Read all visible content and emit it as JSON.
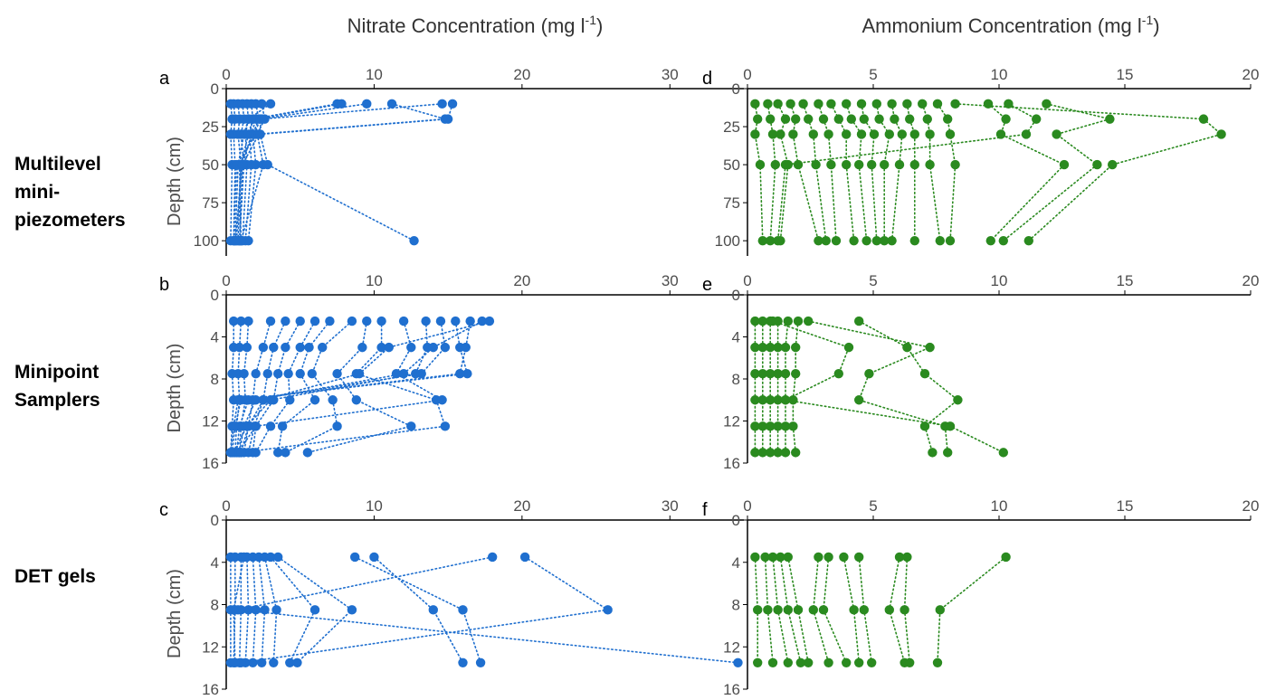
{
  "column_titles": {
    "nitrate": {
      "text": "Nitrate Concentration (mg l",
      "sup": "-1",
      "close": ")"
    },
    "ammonium": {
      "text": "Ammonium Concentration (mg l",
      "sup": "-1",
      "close": ")"
    }
  },
  "row_labels": [
    [
      "Multilevel",
      "mini-",
      "piezometers"
    ],
    [
      "Minipoint",
      "Samplers"
    ],
    [
      "DET gels"
    ]
  ],
  "colors": {
    "nitrate": "#1f6fcf",
    "ammonium": "#2a8a1f"
  },
  "chart_data": [
    {
      "panel": "a",
      "type": "scatter",
      "xlabel": "",
      "ylabel": "Depth (cm)",
      "xlim": [
        0,
        35
      ],
      "xticks": [
        0,
        10,
        20,
        30
      ],
      "ylim": [
        0,
        110
      ],
      "yticks": [
        0,
        25,
        50,
        75,
        100
      ],
      "y_reversed": true,
      "depths": [
        10,
        20,
        30,
        50,
        100
      ],
      "profiles": [
        [
          0.3,
          0.4,
          0.3,
          0.4,
          0.3
        ],
        [
          0.5,
          0.6,
          0.5,
          0.6,
          0.5
        ],
        [
          0.8,
          0.9,
          0.8,
          1.0,
          0.7
        ],
        [
          1.1,
          1.2,
          1.0,
          1.2,
          0.9
        ],
        [
          1.4,
          1.5,
          1.3,
          1.4,
          1.1
        ],
        [
          1.7,
          1.8,
          1.6,
          1.7,
          1.3
        ],
        [
          2.0,
          2.2,
          1.8,
          2.0,
          1.5
        ],
        [
          2.4,
          2.6,
          2.1,
          2.5,
          1.0
        ],
        [
          3.0,
          1.5,
          1.2,
          0.8,
          0.6
        ],
        [
          7.5,
          1.8,
          1.5,
          1.0,
          0.8
        ],
        [
          7.8,
          2.0,
          1.7,
          1.1,
          0.9
        ],
        [
          9.5,
          2.3,
          1.9,
          0.9,
          1.0
        ],
        [
          11.2,
          14.8,
          2.0,
          0.7,
          0.5
        ],
        [
          14.6,
          2.4,
          2.2,
          1.1,
          0.6
        ],
        [
          15.3,
          15.0,
          2.3,
          2.8,
          12.7
        ]
      ]
    },
    {
      "panel": "b",
      "type": "scatter",
      "xlabel": "",
      "ylabel": "Depth (cm)",
      "xlim": [
        0,
        35
      ],
      "xticks": [
        0,
        10,
        20,
        30
      ],
      "ylim": [
        0,
        16
      ],
      "yticks": [
        0,
        4,
        8,
        12,
        16
      ],
      "y_reversed": true,
      "depths": [
        2.5,
        5,
        7.5,
        10,
        12.5,
        15
      ],
      "profiles": [
        [
          0.5,
          0.5,
          0.4,
          0.5,
          0.4,
          0.3
        ],
        [
          1.0,
          0.9,
          0.8,
          0.9,
          0.7,
          0.6
        ],
        [
          1.5,
          1.4,
          1.2,
          1.3,
          1.0,
          0.9
        ],
        [
          3.0,
          2.5,
          2.0,
          1.8,
          1.5,
          1.2
        ],
        [
          4.0,
          3.2,
          2.8,
          2.5,
          1.9,
          1.5
        ],
        [
          5.0,
          4.0,
          3.5,
          3.2,
          2.0,
          1.8
        ],
        [
          6.0,
          5.0,
          4.2,
          4.3,
          3.0,
          2.0
        ],
        [
          7.0,
          5.6,
          5.0,
          6.0,
          3.8,
          3.5
        ],
        [
          8.5,
          6.5,
          5.8,
          7.2,
          7.5,
          4.0
        ],
        [
          9.5,
          9.2,
          7.5,
          8.8,
          12.5,
          5.5
        ],
        [
          10.5,
          10.5,
          8.8,
          14.2,
          14.8,
          1.0
        ],
        [
          12.0,
          12.5,
          11.5,
          14.6,
          2.0,
          0.8
        ],
        [
          13.5,
          13.6,
          12.8,
          3.0,
          1.4,
          0.5
        ],
        [
          14.5,
          14.8,
          13.2,
          1.5,
          0.9,
          0.7
        ],
        [
          15.5,
          15.8,
          16.3,
          1.0,
          0.6,
          0.4
        ],
        [
          16.5,
          16.2,
          15.8,
          0.8,
          0.5,
          0.3
        ],
        [
          17.3,
          14.0,
          12.0,
          2.0,
          1.2,
          0.9
        ],
        [
          17.8,
          11.0,
          9.0,
          2.5,
          1.5,
          1.0
        ]
      ]
    },
    {
      "panel": "c",
      "type": "scatter",
      "xlabel": "",
      "ylabel": "Depth (cm)",
      "xlim": [
        0,
        35
      ],
      "xticks": [
        0,
        10,
        20,
        30
      ],
      "ylim": [
        0,
        16
      ],
      "yticks": [
        0,
        4,
        8,
        12,
        16
      ],
      "y_reversed": true,
      "depths": [
        3.5,
        8.5,
        13.5
      ],
      "profiles": [
        [
          0.3,
          0.3,
          0.3
        ],
        [
          0.6,
          0.6,
          0.5
        ],
        [
          1.0,
          1.0,
          0.9
        ],
        [
          1.4,
          1.5,
          1.3
        ],
        [
          1.8,
          2.0,
          1.8
        ],
        [
          2.2,
          2.6,
          2.4
        ],
        [
          2.6,
          3.4,
          3.2
        ],
        [
          3.0,
          6.0,
          4.3
        ],
        [
          3.5,
          8.5,
          4.8
        ],
        [
          8.7,
          16.0,
          17.2
        ],
        [
          10.0,
          14.0,
          16.0
        ],
        [
          18.0,
          0.8,
          34.6
        ],
        [
          20.2,
          25.8,
          1.0
        ],
        [
          1.2,
          0.5,
          0.6
        ]
      ]
    },
    {
      "panel": "d",
      "type": "scatter",
      "xlabel": "",
      "ylabel": "",
      "xlim": [
        0,
        20
      ],
      "xticks": [
        0,
        5,
        10,
        15,
        20
      ],
      "ylim": [
        0,
        110
      ],
      "yticks": [
        0,
        25,
        50,
        75,
        100
      ],
      "y_reversed": true,
      "depths": [
        10,
        20,
        30,
        50,
        100
      ],
      "profiles": [
        [
          0.3,
          0.4,
          0.3,
          0.5,
          0.6
        ],
        [
          0.8,
          0.9,
          1.0,
          1.1,
          0.9
        ],
        [
          1.2,
          1.5,
          1.3,
          1.6,
          1.3
        ],
        [
          1.7,
          1.9,
          1.8,
          2.0,
          2.8
        ],
        [
          2.2,
          2.4,
          2.6,
          2.7,
          3.1
        ],
        [
          2.8,
          3.0,
          3.2,
          3.3,
          3.5
        ],
        [
          3.3,
          3.6,
          3.9,
          3.9,
          4.2
        ],
        [
          3.9,
          4.1,
          4.5,
          4.4,
          4.7
        ],
        [
          4.5,
          4.6,
          5.0,
          4.9,
          5.1
        ],
        [
          5.1,
          5.2,
          5.6,
          5.4,
          5.4
        ],
        [
          5.7,
          5.8,
          6.1,
          6.0,
          5.7
        ],
        [
          6.3,
          6.4,
          6.6,
          6.6,
          6.6
        ],
        [
          6.9,
          7.1,
          7.2,
          7.2,
          7.6
        ],
        [
          7.5,
          7.9,
          8.0,
          8.2,
          8.0
        ],
        [
          9.5,
          10.2,
          10.0,
          12.5,
          9.6
        ],
        [
          11.8,
          14.3,
          12.2,
          13.8,
          10.1
        ],
        [
          8.2,
          18.0,
          18.7,
          14.4,
          11.1
        ],
        [
          10.3,
          11.4,
          11.0,
          1.5,
          1.2
        ]
      ]
    },
    {
      "panel": "e",
      "type": "scatter",
      "xlabel": "",
      "ylabel": "",
      "xlim": [
        0,
        20
      ],
      "xticks": [
        0,
        5,
        10,
        15,
        20
      ],
      "ylim": [
        0,
        16
      ],
      "yticks": [
        0,
        4,
        8,
        12,
        16
      ],
      "y_reversed": true,
      "depths": [
        2.5,
        5,
        7.5,
        10,
        12.5,
        15
      ],
      "profiles": [
        [
          0.3,
          0.3,
          0.3,
          0.3,
          0.3,
          0.3
        ],
        [
          0.6,
          0.6,
          0.6,
          0.6,
          0.6,
          0.6
        ],
        [
          0.9,
          0.9,
          0.9,
          0.9,
          0.9,
          0.9
        ],
        [
          1.2,
          1.2,
          1.2,
          1.2,
          1.2,
          1.2
        ],
        [
          1.6,
          1.5,
          1.5,
          1.5,
          1.5,
          1.5
        ],
        [
          2.0,
          1.9,
          1.9,
          1.8,
          1.8,
          1.9
        ],
        [
          4.4,
          6.3,
          7.0,
          8.3,
          7.0,
          7.3
        ],
        [
          2.4,
          7.2,
          4.8,
          4.4,
          7.8,
          7.9
        ],
        [
          1.0,
          4.0,
          3.6,
          1.5,
          8.0,
          10.1
        ]
      ]
    },
    {
      "panel": "f",
      "type": "scatter",
      "xlabel": "",
      "ylabel": "",
      "xlim": [
        0,
        20
      ],
      "xticks": [
        0,
        5,
        10,
        15,
        20
      ],
      "ylim": [
        0,
        16
      ],
      "yticks": [
        0,
        4,
        8,
        12,
        16
      ],
      "y_reversed": true,
      "depths": [
        3.5,
        8.5,
        13.5
      ],
      "profiles": [
        [
          0.3,
          0.4,
          0.4
        ],
        [
          0.7,
          0.8,
          1.0
        ],
        [
          1.0,
          1.2,
          1.6
        ],
        [
          1.3,
          1.6,
          2.1
        ],
        [
          1.6,
          2.0,
          2.4
        ],
        [
          2.8,
          2.6,
          3.2
        ],
        [
          3.2,
          3.0,
          3.9
        ],
        [
          3.8,
          4.2,
          4.4
        ],
        [
          4.4,
          4.6,
          4.9
        ],
        [
          6.0,
          5.6,
          6.2
        ],
        [
          6.3,
          6.2,
          6.4
        ],
        [
          10.2,
          7.6,
          7.5
        ]
      ]
    }
  ]
}
